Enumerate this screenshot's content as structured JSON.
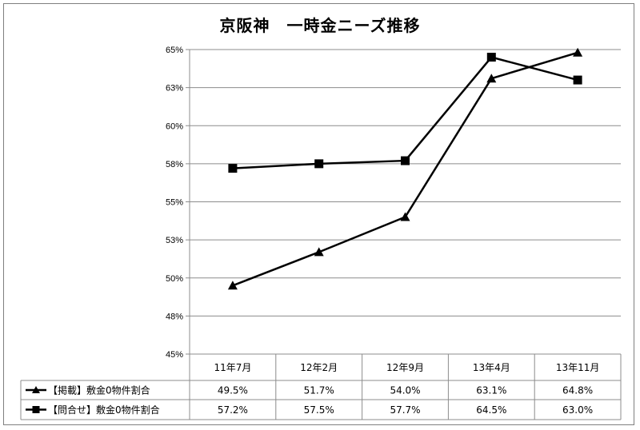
{
  "chart_data": {
    "type": "line",
    "title": "京阪神　一時金ニーズ推移",
    "categories": [
      "11年7月",
      "12年2月",
      "12年9月",
      "13年4月",
      "13年11月"
    ],
    "ylim": [
      45,
      65
    ],
    "y_ticks": [
      "45%",
      "48%",
      "50%",
      "53%",
      "55%",
      "58%",
      "60%",
      "63%",
      "65%"
    ],
    "y_tick_values": [
      45,
      47.5,
      50,
      52.5,
      55,
      57.5,
      60,
      62.5,
      65
    ],
    "grid": true,
    "legend": "data-table",
    "series": [
      {
        "name": "【掲載】敷金0物件割合",
        "marker": "triangle",
        "values": [
          49.5,
          51.7,
          54.0,
          63.1,
          64.8
        ],
        "labels": [
          "49.5%",
          "51.7%",
          "54.0%",
          "63.1%",
          "64.8%"
        ]
      },
      {
        "name": "【問合せ】敷金0物件割合",
        "marker": "square",
        "values": [
          57.2,
          57.5,
          57.7,
          64.5,
          63.0
        ],
        "labels": [
          "57.2%",
          "57.5%",
          "57.7%",
          "64.5%",
          "63.0%"
        ]
      }
    ],
    "colors": {
      "line": "#000000",
      "grid": "#8c8c8c",
      "border": "#7f7f7f"
    }
  }
}
